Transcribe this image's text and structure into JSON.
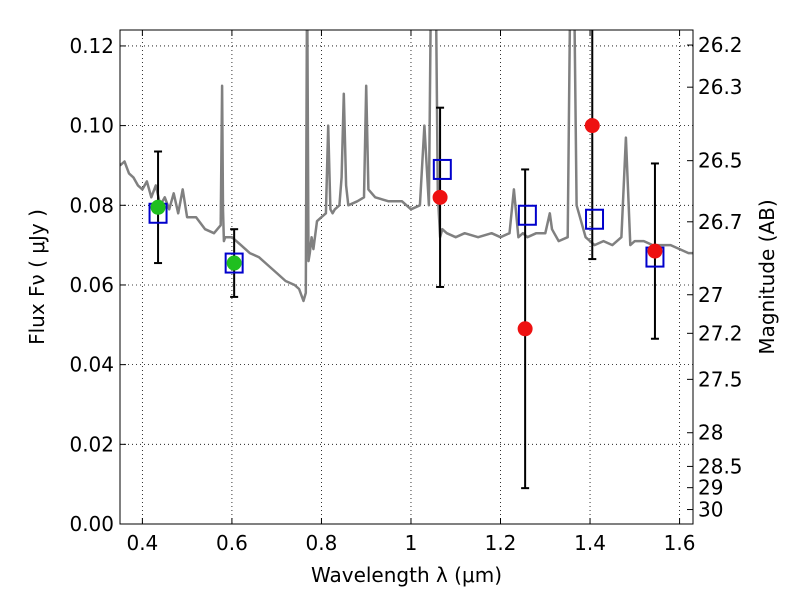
{
  "chart_data": {
    "type": "scatter",
    "xlabel": "Wavelength  λ (μm)",
    "ylabel": "Flux  Fν  ( μJy )",
    "y2label": "Magnitude (AB)",
    "xlim": [
      0.35,
      1.63
    ],
    "ylim": [
      0.0,
      0.124
    ],
    "x_ticks": [
      "0.4",
      "0.6",
      "0.8",
      "1",
      "1.2",
      "1.4",
      "1.6"
    ],
    "y_ticks": [
      "0.00",
      "0.02",
      "0.04",
      "0.06",
      "0.08",
      "0.10",
      "0.12"
    ],
    "y2_ticks": [
      "26.2",
      "26.3",
      "26.5",
      "26.7",
      "27",
      "27.2",
      "27.5",
      "28",
      "28.5",
      "29",
      "30"
    ],
    "grid": true,
    "colors": {
      "spectrum": "#808080",
      "model": "#0000cc",
      "observed_green": "#1fbf1f",
      "observed_red": "#ee1111",
      "errorbar": "#000000"
    },
    "spectrum": {
      "x": [
        0.35,
        0.36,
        0.37,
        0.38,
        0.39,
        0.4,
        0.41,
        0.42,
        0.43,
        0.44,
        0.45,
        0.46,
        0.47,
        0.48,
        0.49,
        0.5,
        0.52,
        0.54,
        0.56,
        0.575,
        0.578,
        0.58,
        0.582,
        0.585,
        0.6,
        0.62,
        0.64,
        0.66,
        0.68,
        0.7,
        0.72,
        0.74,
        0.75,
        0.76,
        0.765,
        0.768,
        0.771,
        0.774,
        0.778,
        0.782,
        0.79,
        0.8,
        0.81,
        0.815,
        0.82,
        0.825,
        0.83,
        0.84,
        0.845,
        0.85,
        0.855,
        0.86,
        0.88,
        0.895,
        0.9,
        0.905,
        0.92,
        0.95,
        0.98,
        1.0,
        1.02,
        1.03,
        1.04,
        1.05,
        1.06,
        1.065,
        1.07,
        1.08,
        1.1,
        1.12,
        1.15,
        1.18,
        1.2,
        1.22,
        1.23,
        1.24,
        1.25,
        1.26,
        1.28,
        1.3,
        1.31,
        1.315,
        1.32,
        1.33,
        1.35,
        1.36,
        1.37,
        1.38,
        1.39,
        1.4,
        1.41,
        1.43,
        1.45,
        1.47,
        1.48,
        1.49,
        1.5,
        1.52,
        1.54,
        1.56,
        1.58,
        1.6,
        1.62,
        1.63
      ],
      "y": [
        0.09,
        0.091,
        0.088,
        0.087,
        0.085,
        0.084,
        0.086,
        0.082,
        0.085,
        0.08,
        0.082,
        0.079,
        0.083,
        0.078,
        0.084,
        0.077,
        0.077,
        0.074,
        0.073,
        0.075,
        0.11,
        0.079,
        0.071,
        0.072,
        0.072,
        0.07,
        0.068,
        0.067,
        0.065,
        0.063,
        0.061,
        0.06,
        0.059,
        0.056,
        0.058,
        0.14,
        0.066,
        0.068,
        0.072,
        0.069,
        0.076,
        0.077,
        0.078,
        0.1,
        0.079,
        0.078,
        0.079,
        0.08,
        0.087,
        0.108,
        0.085,
        0.08,
        0.081,
        0.082,
        0.11,
        0.084,
        0.082,
        0.081,
        0.081,
        0.079,
        0.08,
        0.1,
        0.08,
        0.2,
        0.083,
        0.072,
        0.074,
        0.073,
        0.072,
        0.073,
        0.072,
        0.073,
        0.072,
        0.073,
        0.084,
        0.072,
        0.073,
        0.072,
        0.073,
        0.073,
        0.078,
        0.074,
        0.073,
        0.071,
        0.072,
        0.18,
        0.08,
        0.076,
        0.072,
        0.071,
        0.07,
        0.071,
        0.07,
        0.072,
        0.097,
        0.07,
        0.071,
        0.071,
        0.07,
        0.07,
        0.07,
        0.069,
        0.068,
        0.068
      ]
    },
    "model_points": {
      "label": "",
      "x": [
        0.435,
        0.605,
        1.07,
        1.26,
        1.41,
        1.545
      ],
      "y": [
        0.078,
        0.0655,
        0.089,
        0.0775,
        0.0765,
        0.067
      ]
    },
    "observed_points": [
      {
        "x": 0.435,
        "y": 0.0795,
        "yerr": 0.014,
        "color": "green"
      },
      {
        "x": 0.605,
        "y": 0.0655,
        "yerr": 0.0085,
        "color": "green"
      },
      {
        "x": 1.065,
        "y": 0.082,
        "yerr": 0.0225,
        "color": "red"
      },
      {
        "x": 1.255,
        "y": 0.049,
        "yerr": 0.04,
        "color": "red"
      },
      {
        "x": 1.405,
        "y": 0.1,
        "yerr": 0.0335,
        "color": "red"
      },
      {
        "x": 1.545,
        "y": 0.0685,
        "yerr": 0.022,
        "color": "red"
      }
    ]
  }
}
